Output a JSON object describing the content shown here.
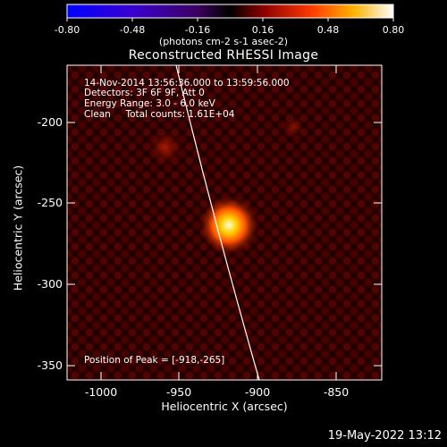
{
  "colorbar": {
    "tick_labels": [
      "-0.80",
      "-0.48",
      "-0.16",
      "0.16",
      "0.48",
      "0.80"
    ],
    "unit_label": "(photons cm-2 s-1 asec-2)"
  },
  "plot": {
    "title": "Reconstructed RHESSI Image",
    "annotations": {
      "time_range": "14-Nov-2014 13:56:36.000 to 13:59:56.000",
      "detectors": "Detectors: 3F 6F 9F, Att 0",
      "energy_range": "Energy Range: 3.0 - 6.0 keV",
      "clean_counts": "Clean     Total counts: 1.61E+04",
      "peak_position": "Position of Peak = [-918,-265]"
    },
    "x_axis": {
      "label": "Heliocentric X (arcsec)",
      "tick_labels": [
        "-1000",
        "-950",
        "-900",
        "-850"
      ],
      "range": [
        -1020,
        -823
      ]
    },
    "y_axis": {
      "label": "Heliocentric Y (arcsec)",
      "tick_labels": [
        "-200",
        "-250",
        "-300",
        "-350"
      ],
      "range": [
        -362,
        -168
      ]
    }
  },
  "footer": {
    "date": "19-May-2022 13:12"
  },
  "chart_data": {
    "type": "heatmap",
    "title": "Reconstructed RHESSI Image",
    "xlabel": "Heliocentric X (arcsec)",
    "ylabel": "Heliocentric Y (arcsec)",
    "xlim": [
      -1020,
      -823
    ],
    "ylim": [
      -362,
      -168
    ],
    "colorbar_range": [
      -0.8,
      0.8
    ],
    "peak": {
      "x": -918,
      "y": -265
    },
    "secondary_sources": [
      {
        "x": -960,
        "y": -218
      },
      {
        "x": -865,
        "y": -205
      }
    ]
  }
}
